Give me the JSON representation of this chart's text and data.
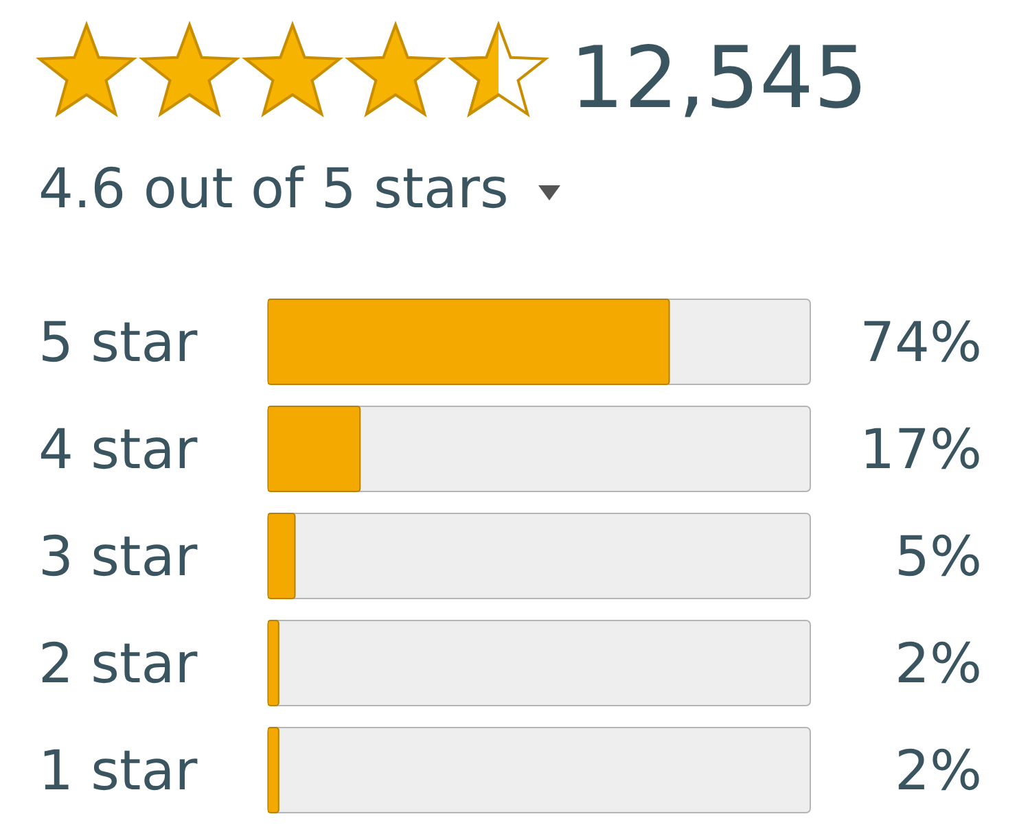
{
  "chart_data": {
    "type": "bar",
    "orientation": "horizontal",
    "categories": [
      "5 star",
      "4 star",
      "3 star",
      "2 star",
      "1 star"
    ],
    "values": [
      74,
      17,
      5,
      2,
      2
    ],
    "value_labels": [
      "74%",
      "17%",
      "5%",
      "2%",
      "2%"
    ],
    "color": "#f3a900",
    "xlim": [
      0,
      100
    ],
    "tick_labels": "y",
    "annotations": [
      "12,545",
      "4.6 out of 5 stars"
    ]
  }
}
